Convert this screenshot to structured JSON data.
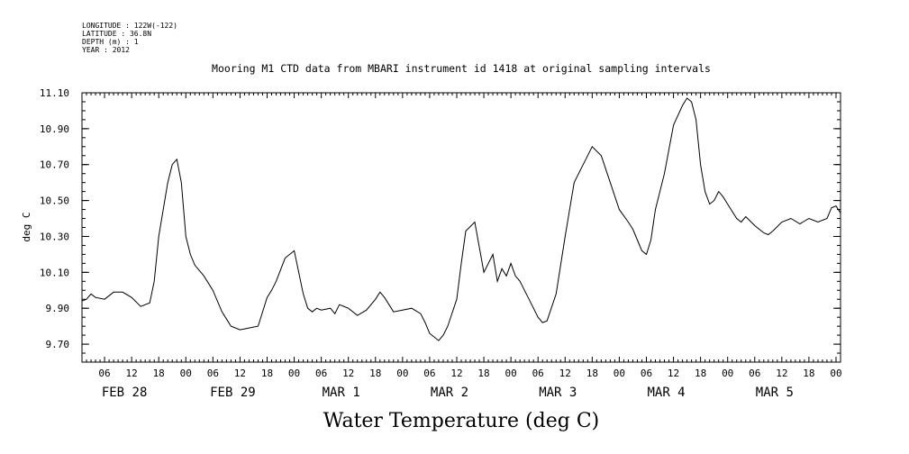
{
  "meta": {
    "longitude": "LONGITUDE : 122W(-122)",
    "latitude": "LATITUDE : 36.8N",
    "depth": "DEPTH (m) : 1",
    "year": "YEAR : 2012"
  },
  "chart_data": {
    "type": "line",
    "title": "Mooring M1 CTD data from MBARI instrument id 1418 at original sampling intervals",
    "xlabel": "Water Temperature (deg C)",
    "ylabel": "deg C",
    "ylim": [
      9.6,
      11.1
    ],
    "yticks": [
      "9.70",
      "9.90",
      "10.10",
      "10.30",
      "10.50",
      "10.70",
      "10.90",
      "11.10"
    ],
    "xlim_hours": [
      1,
      169
    ],
    "hour_ticks": [
      "06",
      "12",
      "18",
      "00",
      "06",
      "12",
      "18",
      "00",
      "06",
      "12",
      "18",
      "00",
      "06",
      "12",
      "18",
      "00",
      "06",
      "12",
      "18",
      "00",
      "06",
      "12",
      "18",
      "00",
      "06",
      "12",
      "18",
      "00"
    ],
    "day_labels": [
      "FEB 28",
      "FEB 29",
      "MAR  1",
      "MAR  2",
      "MAR  3",
      "MAR  4",
      "MAR  5"
    ],
    "grid": false,
    "series": [
      {
        "x_hours": [
          1,
          2,
          3,
          4,
          6,
          8,
          10,
          12,
          14,
          16,
          17,
          18,
          19,
          20,
          21,
          22,
          23,
          24,
          25,
          26,
          27,
          28,
          30,
          32,
          34,
          36,
          38,
          40,
          42,
          43,
          44,
          46,
          48,
          49,
          50,
          51,
          52,
          53,
          54,
          56,
          57,
          58,
          60,
          62,
          64,
          66,
          67,
          68,
          70,
          72,
          74,
          76,
          77,
          78,
          80,
          81,
          82,
          84,
          85,
          86,
          88,
          90,
          92,
          93,
          94,
          95,
          96,
          97,
          98,
          99,
          100,
          101,
          102,
          103,
          104,
          106,
          108,
          109,
          110,
          112,
          113,
          114,
          116,
          118,
          120,
          122,
          123,
          124,
          125,
          126,
          127,
          128,
          130,
          132,
          134,
          135,
          136,
          137,
          138,
          139,
          140,
          141,
          142,
          143,
          144,
          145,
          146,
          147,
          148,
          150,
          151,
          152,
          153,
          154,
          156,
          158,
          160,
          162,
          164,
          166,
          167,
          168,
          169
        ],
        "values": [
          9.94,
          9.95,
          9.98,
          9.96,
          9.95,
          9.99,
          9.99,
          9.96,
          9.91,
          9.93,
          10.05,
          10.3,
          10.45,
          10.6,
          10.7,
          10.73,
          10.6,
          10.3,
          10.2,
          10.14,
          10.11,
          10.08,
          10.0,
          9.88,
          9.8,
          9.78,
          9.79,
          9.8,
          9.96,
          10.0,
          10.05,
          10.18,
          10.22,
          10.1,
          9.98,
          9.9,
          9.88,
          9.9,
          9.89,
          9.9,
          9.87,
          9.92,
          9.9,
          9.86,
          9.89,
          9.95,
          9.99,
          9.96,
          9.88,
          9.89,
          9.9,
          9.87,
          9.82,
          9.76,
          9.72,
          9.75,
          9.8,
          9.95,
          10.15,
          10.33,
          10.38,
          10.1,
          10.2,
          10.05,
          10.12,
          10.08,
          10.15,
          10.08,
          10.05,
          10.0,
          9.95,
          9.9,
          9.85,
          9.82,
          9.83,
          9.98,
          10.3,
          10.45,
          10.6,
          10.7,
          10.75,
          10.8,
          10.75,
          10.6,
          10.45,
          10.38,
          10.34,
          10.28,
          10.22,
          10.2,
          10.28,
          10.45,
          10.65,
          10.92,
          11.03,
          11.07,
          11.05,
          10.95,
          10.7,
          10.55,
          10.48,
          10.5,
          10.55,
          10.52,
          10.48,
          10.44,
          10.4,
          10.38,
          10.41,
          10.36,
          10.34,
          10.32,
          10.31,
          10.33,
          10.38,
          10.4,
          10.37,
          10.4,
          10.38,
          10.4,
          10.46,
          10.47,
          10.43
        ]
      }
    ]
  }
}
